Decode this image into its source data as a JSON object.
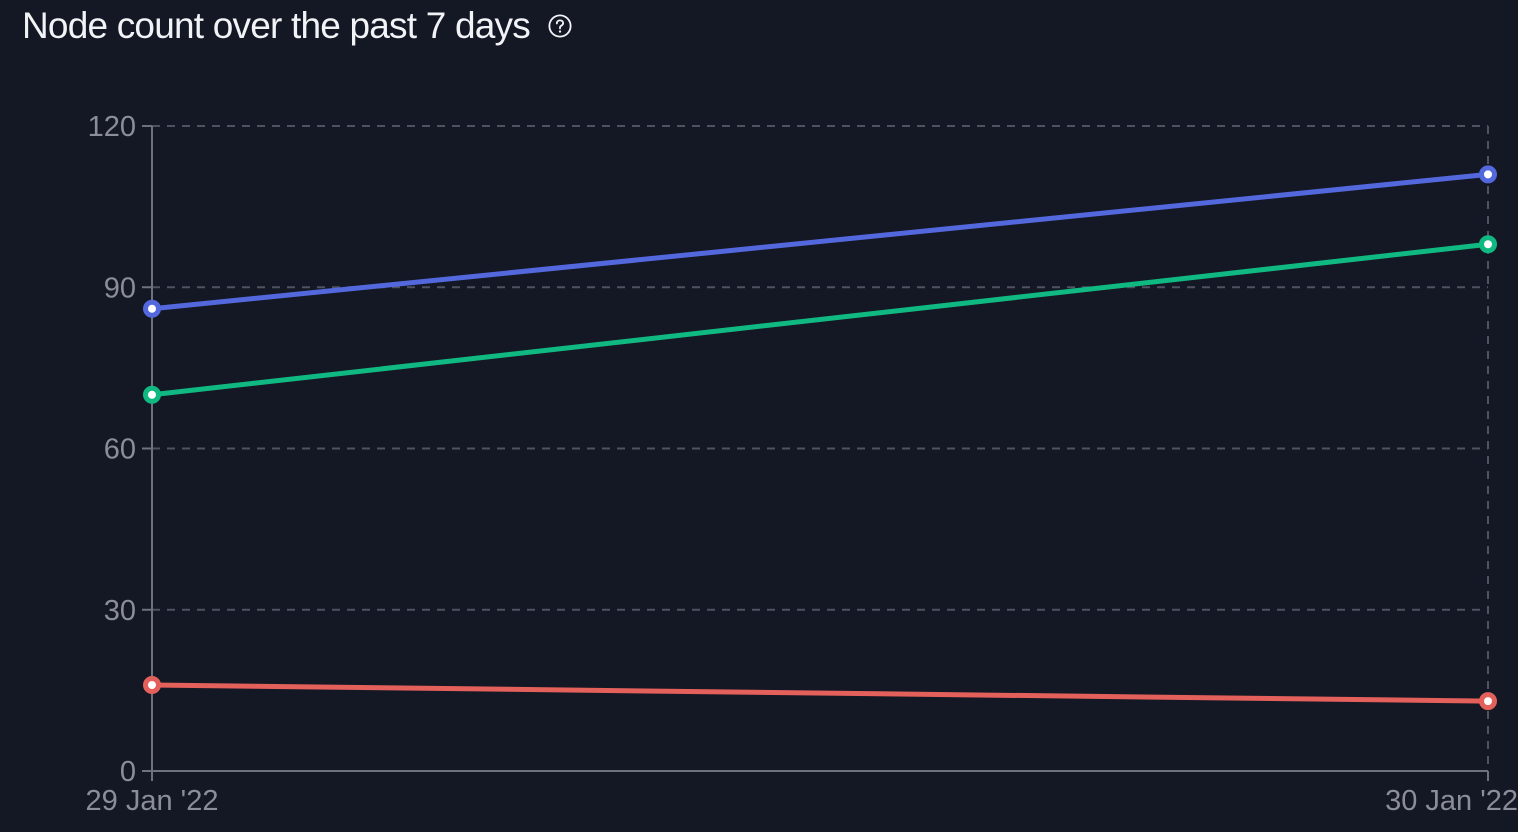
{
  "header": {
    "title": "Node count over the past 7 days",
    "help_icon": "question-circle-icon"
  },
  "colors": {
    "background": "#141724",
    "grid": "#4f5260",
    "axis": "#6f727d",
    "tick_text": "#8b8e99",
    "title_text": "#f2f3f7"
  },
  "chart_data": {
    "type": "line",
    "x": [
      "29 Jan '22",
      "30 Jan '22"
    ],
    "series": [
      {
        "color": "#5468de",
        "values": [
          86,
          111
        ]
      },
      {
        "color": "#10b981",
        "values": [
          70,
          98
        ]
      },
      {
        "color": "#e3605b",
        "values": [
          16,
          13
        ]
      }
    ],
    "ylim": [
      0,
      120
    ],
    "yticks": [
      "0",
      "30",
      "60",
      "90",
      "120"
    ],
    "grid": true,
    "title": "Node count over the past 7 days",
    "xlabel": "",
    "ylabel": ""
  }
}
